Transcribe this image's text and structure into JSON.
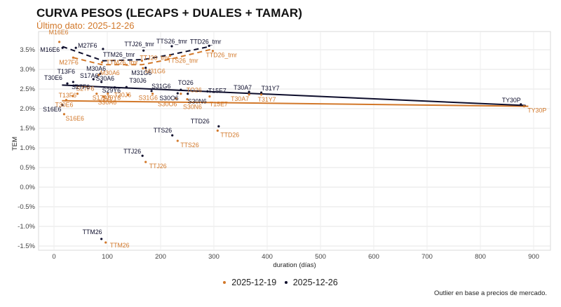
{
  "title": "CURVA PESOS (LECAPS + DUALES + TAMAR)",
  "subtitle": "Último dato: 2025-12-26",
  "caption": "Outlier en base a precios de mercado.",
  "colors": {
    "prev": "#d2782a",
    "curr": "#0d0d2b"
  },
  "chart_data": {
    "type": "scatter",
    "title": "CURVA PESOS (LECAPS + DUALES + TAMAR)",
    "subtitle": "Último dato: 2025-12-26",
    "xlabel": "duration (días)",
    "ylabel": "TEM",
    "xlim": [
      -30,
      930
    ],
    "ylim": [
      -1.6,
      3.95
    ],
    "xticks": [
      0,
      100,
      200,
      300,
      400,
      500,
      600,
      700,
      800,
      900
    ],
    "xtick_labels": [
      "0",
      "100",
      "200",
      "300",
      "400",
      "500",
      "600",
      "700",
      "800",
      "900"
    ],
    "yticks": [
      -1.5,
      -1.0,
      -0.5,
      0.0,
      0.5,
      1.0,
      1.5,
      2.0,
      2.5,
      3.0,
      3.5
    ],
    "ytick_labels": [
      "-1.5%",
      "-1.0%",
      "-0.5%",
      "0.0%",
      "0.5%",
      "1.0%",
      "1.5%",
      "2.0%",
      "2.5%",
      "3.0%",
      "3.5%"
    ],
    "grid": true,
    "legend": {
      "position": "bottom",
      "entries": [
        "2025-12-19",
        "2025-12-26"
      ]
    },
    "series": [
      {
        "name": "2025-12-19",
        "color": "#d2782a",
        "points": [
          {
            "label": "M16E6",
            "x": 10,
            "y": 3.7
          },
          {
            "label": "M27F6",
            "x": 36,
            "y": 3.3
          },
          {
            "label": "TTM26_tmr",
            "x": 90,
            "y": 3.18
          },
          {
            "label": "TTJ26_tmr",
            "x": 165,
            "y": 3.22
          },
          {
            "label": "TTS26_tmr",
            "x": 218,
            "y": 3.35
          },
          {
            "label": "TTD26_tmr",
            "x": 298,
            "y": 3.47
          },
          {
            "label": "M30A6",
            "x": 84,
            "y": 2.86
          },
          {
            "label": "M31G6",
            "x": 167,
            "y": 3.03
          },
          {
            "label": "T13F6",
            "x": 35,
            "y": 2.32
          },
          {
            "label": "S27F6",
            "x": 44,
            "y": 2.38
          },
          {
            "label": "S17A6",
            "x": 80,
            "y": 2.38
          },
          {
            "label": "S29Y6",
            "x": 101,
            "y": 2.38
          },
          {
            "label": "S30A6",
            "x": 93,
            "y": 2.3
          },
          {
            "label": "T30J6",
            "x": 139,
            "y": 2.35
          },
          {
            "label": "S31G6",
            "x": 185,
            "y": 2.38
          },
          {
            "label": "T30E6",
            "x": 23,
            "y": 2.22
          },
          {
            "label": "S30O6",
            "x": 229,
            "y": 2.26
          },
          {
            "label": "TO26",
            "x": 238,
            "y": 2.38
          },
          {
            "label": "S30N6",
            "x": 250,
            "y": 2.24
          },
          {
            "label": "T15E7",
            "x": 292,
            "y": 2.31
          },
          {
            "label": "T30A7",
            "x": 366,
            "y": 2.36
          },
          {
            "label": "T31Y7",
            "x": 389,
            "y": 2.36
          },
          {
            "label": "TY30P",
            "x": 882,
            "y": 2.06
          },
          {
            "label": "S16E6",
            "x": 19,
            "y": 1.86
          },
          {
            "label": "TTD26",
            "x": 307,
            "y": 1.44
          },
          {
            "label": "TTS26",
            "x": 232,
            "y": 1.18
          },
          {
            "label": "TTJ26",
            "x": 172,
            "y": 0.64
          },
          {
            "label": "TTM26",
            "x": 97,
            "y": -1.41
          }
        ],
        "fit_line": {
          "style": "solid",
          "x": [
            15,
            890
          ],
          "y": [
            2.2,
            2.06
          ]
        },
        "tamar_curve": {
          "style": "dashed",
          "x": [
            36,
            90,
            165,
            218,
            298
          ],
          "y": [
            3.3,
            3.12,
            3.12,
            3.26,
            3.52
          ]
        }
      },
      {
        "name": "2025-12-26",
        "color": "#0d0d2b",
        "points": [
          {
            "label": "M16E6",
            "x": 16,
            "y": 3.55
          },
          {
            "label": "M27F6",
            "x": 41,
            "y": 3.55
          },
          {
            "label": "TTM26_tmr",
            "x": 92,
            "y": 3.52
          },
          {
            "label": "TTJ26_tmr",
            "x": 168,
            "y": 3.48
          },
          {
            "label": "TTS26_tmr",
            "x": 221,
            "y": 3.59
          },
          {
            "label": "TTD26_tmr",
            "x": 291,
            "y": 3.6
          },
          {
            "label": "M30A6",
            "x": 87,
            "y": 2.89
          },
          {
            "label": "M31G6",
            "x": 172,
            "y": 3.04
          },
          {
            "label": "T13F6",
            "x": 36,
            "y": 2.68
          },
          {
            "label": "S17A6",
            "x": 74,
            "y": 2.75
          },
          {
            "label": "S30A6",
            "x": 89,
            "y": 2.68
          },
          {
            "label": "T30J6",
            "x": 136,
            "y": 2.55
          },
          {
            "label": "T30E6",
            "x": 25,
            "y": 2.64
          },
          {
            "label": "S27F6",
            "x": 41,
            "y": 2.59
          },
          {
            "label": "S29Y6",
            "x": 114,
            "y": 2.54
          },
          {
            "label": "S31G6",
            "x": 183,
            "y": 2.45
          },
          {
            "label": "TO26",
            "x": 238,
            "y": 2.48
          },
          {
            "label": "S30O6",
            "x": 232,
            "y": 2.39
          },
          {
            "label": "S30N6",
            "x": 251,
            "y": 2.38
          },
          {
            "label": "T15E7",
            "x": 288,
            "y": 2.44
          },
          {
            "label": "T30A7",
            "x": 366,
            "y": 2.43
          },
          {
            "label": "T31Y7",
            "x": 389,
            "y": 2.41
          },
          {
            "label": "TY30P",
            "x": 876,
            "y": 2.11
          },
          {
            "label": "S16E6",
            "x": 16,
            "y": 2.09
          },
          {
            "label": "TTD26",
            "x": 309,
            "y": 1.55
          },
          {
            "label": "TTS26",
            "x": 222,
            "y": 1.32
          },
          {
            "label": "TTJ26",
            "x": 166,
            "y": 0.8
          },
          {
            "label": "TTM26",
            "x": 89,
            "y": -1.32
          }
        ],
        "fit_line": {
          "style": "solid",
          "x": [
            15,
            885
          ],
          "y": [
            2.6,
            2.08
          ]
        },
        "tamar_curve": {
          "style": "dashed",
          "x": [
            16,
            92,
            168,
            221,
            291
          ],
          "y": [
            3.58,
            3.22,
            3.25,
            3.38,
            3.58
          ]
        }
      }
    ]
  }
}
